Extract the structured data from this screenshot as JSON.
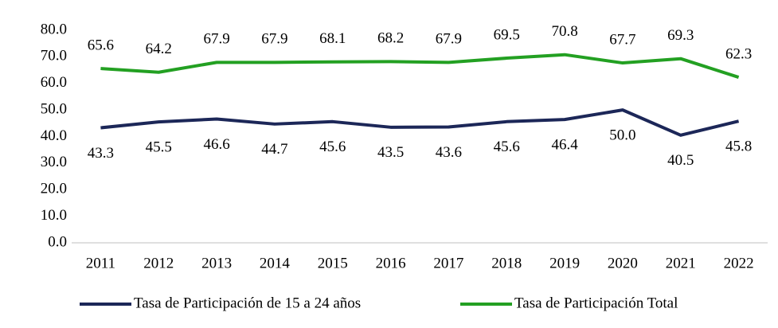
{
  "chart_data": {
    "type": "line",
    "categories": [
      "2011",
      "2012",
      "2013",
      "2014",
      "2015",
      "2016",
      "2017",
      "2018",
      "2019",
      "2020",
      "2021",
      "2022"
    ],
    "series": [
      {
        "name": "Tasa de Participación de 15 a 24 años",
        "color": "#1c2758",
        "values": [
          43.3,
          45.5,
          46.6,
          44.7,
          45.6,
          43.5,
          43.6,
          45.6,
          46.4,
          50.0,
          40.5,
          45.8
        ],
        "value_labels": [
          "43.3",
          "45.5",
          "46.6",
          "44.7",
          "45.6",
          "43.5",
          "43.6",
          "45.6",
          "46.4",
          "50.0",
          "40.5",
          "45.8"
        ]
      },
      {
        "name": "Tasa de Participación Total",
        "color": "#23a022",
        "values": [
          65.6,
          64.2,
          67.9,
          67.9,
          68.1,
          68.2,
          67.9,
          69.5,
          70.8,
          67.7,
          69.3,
          62.3
        ],
        "value_labels": [
          "65.6",
          "64.2",
          "67.9",
          "67.9",
          "68.1",
          "68.2",
          "67.9",
          "69.5",
          "70.8",
          "67.7",
          "69.3",
          "62.3"
        ]
      }
    ],
    "ylim": [
      0,
      80
    ],
    "yticks": [
      {
        "value": 0,
        "label": "0.0"
      },
      {
        "value": 10,
        "label": "10.0"
      },
      {
        "value": 20,
        "label": "20.0"
      },
      {
        "value": 30,
        "label": "30.0"
      },
      {
        "value": 40,
        "label": "40.0"
      },
      {
        "value": 50,
        "label": "50.0"
      },
      {
        "value": 60,
        "label": "60.0"
      },
      {
        "value": 70,
        "label": "70.0"
      },
      {
        "value": 80,
        "label": "80.0"
      }
    ],
    "grid": false,
    "legend": "bottom"
  }
}
